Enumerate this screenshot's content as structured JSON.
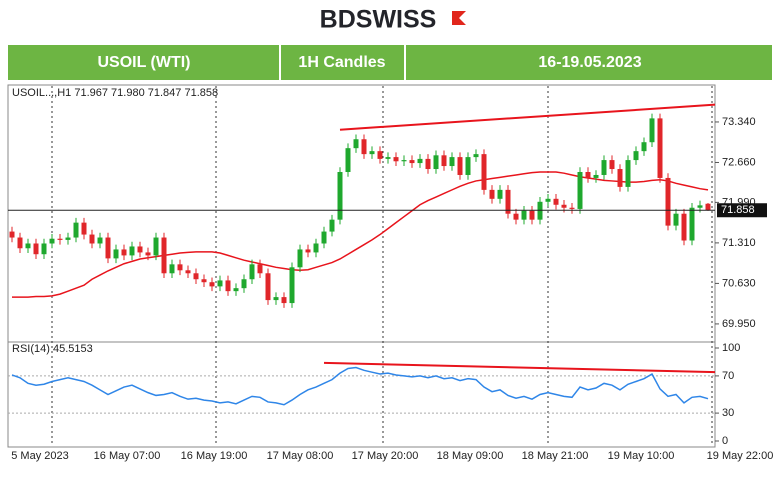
{
  "header": {
    "logo": "BDSWISS",
    "cells": [
      "USOIL (WTI)",
      "1H Candles",
      "16-19.05.2023"
    ]
  },
  "chart_data": [
    {
      "type": "candlestick",
      "info_label": "USOIL...,H1  71.967 71.980 71.847 71.858",
      "up_color": "#1fa82e",
      "down_color": "#e0262a",
      "open": [
        71.5,
        71.4,
        71.22,
        71.3,
        71.12,
        71.3,
        71.38,
        71.36,
        71.4,
        71.65,
        71.45,
        71.3,
        71.4,
        71.05,
        71.2,
        71.1,
        71.25,
        71.15,
        71.1,
        71.4,
        70.8,
        70.95,
        70.85,
        70.8,
        70.7,
        70.65,
        70.58,
        70.68,
        70.5,
        70.55,
        70.7,
        70.95,
        70.8,
        70.35,
        70.4,
        70.3,
        70.9,
        71.2,
        71.15,
        71.3,
        71.5,
        71.7,
        72.5,
        72.9,
        73.05,
        72.8,
        72.85,
        72.72,
        72.75,
        72.68,
        72.7,
        72.65,
        72.72,
        72.55,
        72.78,
        72.6,
        72.75,
        72.45,
        72.75,
        72.8,
        72.2,
        72.05,
        72.2,
        71.8,
        71.7,
        71.85,
        71.7,
        72.0,
        72.05,
        71.95,
        71.9,
        71.88,
        72.5,
        72.4,
        72.45,
        72.7,
        72.55,
        72.25,
        72.7,
        72.85,
        73.0,
        73.4,
        72.4,
        71.6,
        71.8,
        71.35,
        71.9,
        71.967
      ],
      "high": [
        71.58,
        71.48,
        71.38,
        71.38,
        71.38,
        71.46,
        71.46,
        71.48,
        71.73,
        71.73,
        71.53,
        71.48,
        71.48,
        71.28,
        71.28,
        71.33,
        71.33,
        71.23,
        71.48,
        71.48,
        71.03,
        71.03,
        70.93,
        70.88,
        70.78,
        70.73,
        70.76,
        70.76,
        70.63,
        70.78,
        71.03,
        71.03,
        70.88,
        70.48,
        70.48,
        70.98,
        71.28,
        71.28,
        71.38,
        71.58,
        71.78,
        72.58,
        72.98,
        73.13,
        73.13,
        72.93,
        72.93,
        72.83,
        72.83,
        72.78,
        72.78,
        72.8,
        72.8,
        72.86,
        72.86,
        72.83,
        72.83,
        72.83,
        72.88,
        72.88,
        72.28,
        72.28,
        72.28,
        71.88,
        71.93,
        71.93,
        72.08,
        72.13,
        72.13,
        72.03,
        71.98,
        72.58,
        72.58,
        72.53,
        72.78,
        72.78,
        72.63,
        72.78,
        72.93,
        73.08,
        73.48,
        73.48,
        72.48,
        71.88,
        71.88,
        71.98,
        72.02,
        71.98
      ],
      "low": [
        71.32,
        71.14,
        71.14,
        71.04,
        71.04,
        71.22,
        71.28,
        71.28,
        71.32,
        71.37,
        71.22,
        71.22,
        70.97,
        70.97,
        71.02,
        71.02,
        71.07,
        71.02,
        71.02,
        70.72,
        70.72,
        70.77,
        70.72,
        70.62,
        70.57,
        70.5,
        70.5,
        70.42,
        70.42,
        70.47,
        70.62,
        70.72,
        70.27,
        70.27,
        70.22,
        70.22,
        70.82,
        71.07,
        71.07,
        71.22,
        71.42,
        71.62,
        72.42,
        72.82,
        72.72,
        72.72,
        72.64,
        72.64,
        72.6,
        72.6,
        72.57,
        72.57,
        72.47,
        72.47,
        72.52,
        72.52,
        72.37,
        72.37,
        72.67,
        72.12,
        71.97,
        71.97,
        71.72,
        71.62,
        71.62,
        71.62,
        71.62,
        71.92,
        71.87,
        71.82,
        71.8,
        71.8,
        72.32,
        72.32,
        72.37,
        72.47,
        72.17,
        72.17,
        72.62,
        72.77,
        72.92,
        72.32,
        71.52,
        71.52,
        71.27,
        71.27,
        71.82,
        71.847
      ],
      "close": [
        71.4,
        71.22,
        71.3,
        71.12,
        71.3,
        71.38,
        71.36,
        71.4,
        71.65,
        71.45,
        71.3,
        71.4,
        71.05,
        71.2,
        71.1,
        71.25,
        71.15,
        71.1,
        71.4,
        70.8,
        70.95,
        70.85,
        70.8,
        70.7,
        70.65,
        70.58,
        70.68,
        70.5,
        70.55,
        70.7,
        70.95,
        70.8,
        70.35,
        70.4,
        70.3,
        70.9,
        71.2,
        71.15,
        71.3,
        71.5,
        71.7,
        72.5,
        72.9,
        73.05,
        72.8,
        72.85,
        72.72,
        72.75,
        72.68,
        72.7,
        72.65,
        72.72,
        72.55,
        72.78,
        72.6,
        72.75,
        72.45,
        72.75,
        72.8,
        72.2,
        72.05,
        72.2,
        71.8,
        71.7,
        71.85,
        71.7,
        72.0,
        72.05,
        71.95,
        71.9,
        71.88,
        72.5,
        72.4,
        72.45,
        72.7,
        72.55,
        72.25,
        72.7,
        72.85,
        73.0,
        73.4,
        72.4,
        71.6,
        71.8,
        71.35,
        71.9,
        71.94,
        71.858
      ],
      "moving_average": {
        "color": "#e8141c",
        "values": [
          70.4,
          70.4,
          70.4,
          70.41,
          70.41,
          70.42,
          70.45,
          70.5,
          70.55,
          70.6,
          70.7,
          70.77,
          70.84,
          70.9,
          70.96,
          71.0,
          71.04,
          71.06,
          71.08,
          71.1,
          71.12,
          71.14,
          71.15,
          71.16,
          71.16,
          71.16,
          71.14,
          71.1,
          71.06,
          71.02,
          70.99,
          70.96,
          70.93,
          70.9,
          70.88,
          70.86,
          70.85,
          70.86,
          70.9,
          70.94,
          70.98,
          71.04,
          71.12,
          71.2,
          71.28,
          71.36,
          71.45,
          71.55,
          71.65,
          71.75,
          71.85,
          71.95,
          72.02,
          72.08,
          72.14,
          72.2,
          72.26,
          72.31,
          72.35,
          72.37,
          72.39,
          72.41,
          72.43,
          72.45,
          72.47,
          72.49,
          72.5,
          72.5,
          72.5,
          72.48,
          72.45,
          72.42,
          72.4,
          72.38,
          72.36,
          72.35,
          72.34,
          72.33,
          72.33,
          72.34,
          72.36,
          72.37,
          72.35,
          72.31,
          72.28,
          72.25,
          72.22,
          72.2
        ]
      },
      "trendline": {
        "color": "#e8141c",
        "x": [
          41,
          88
        ],
        "y": [
          73.21,
          73.63
        ]
      },
      "current_price": 71.858,
      "ylim": [
        69.68,
        73.91
      ],
      "yticks": [
        {
          "value": 73.34,
          "label": "73.340"
        },
        {
          "value": 72.66,
          "label": "72.660"
        },
        {
          "value": 71.99,
          "label": "71.990"
        },
        {
          "value": 71.31,
          "label": "71.310"
        },
        {
          "value": 70.63,
          "label": "70.630"
        },
        {
          "value": 69.95,
          "label": "69.950"
        }
      ]
    },
    {
      "type": "line",
      "label": "RSI(14) 45.5153",
      "color": "#2f86e8",
      "values": [
        71,
        68,
        62,
        60,
        61,
        64,
        66,
        68,
        66,
        64,
        60,
        55,
        50,
        54,
        58,
        60,
        56,
        52,
        49,
        50,
        52,
        48,
        45,
        46,
        44,
        43,
        41,
        42,
        40,
        44,
        48,
        47,
        42,
        41,
        39,
        44,
        50,
        55,
        58,
        62,
        66,
        73,
        78,
        79,
        76,
        74,
        72,
        73,
        71,
        70,
        69,
        70,
        68,
        70,
        67,
        68,
        65,
        67,
        66,
        58,
        53,
        55,
        49,
        46,
        48,
        45,
        50,
        52,
        50,
        48,
        47,
        58,
        55,
        57,
        62,
        60,
        55,
        61,
        64,
        67,
        72,
        56,
        48,
        50,
        41,
        47,
        48,
        45.5153
      ],
      "trendline": {
        "color": "#e8141c",
        "x": [
          39,
          88
        ],
        "y": [
          84,
          74
        ]
      },
      "ylim": [
        0,
        100
      ],
      "yticks": [
        100,
        70,
        30,
        0
      ],
      "x_labels": [
        "5 May 2023",
        "16 May 07:00",
        "16 May 19:00",
        "17 May 08:00",
        "17 May 20:00",
        "18 May 09:00",
        "18 May 21:00",
        "19 May 10:00",
        "19 May 22:00"
      ]
    }
  ]
}
